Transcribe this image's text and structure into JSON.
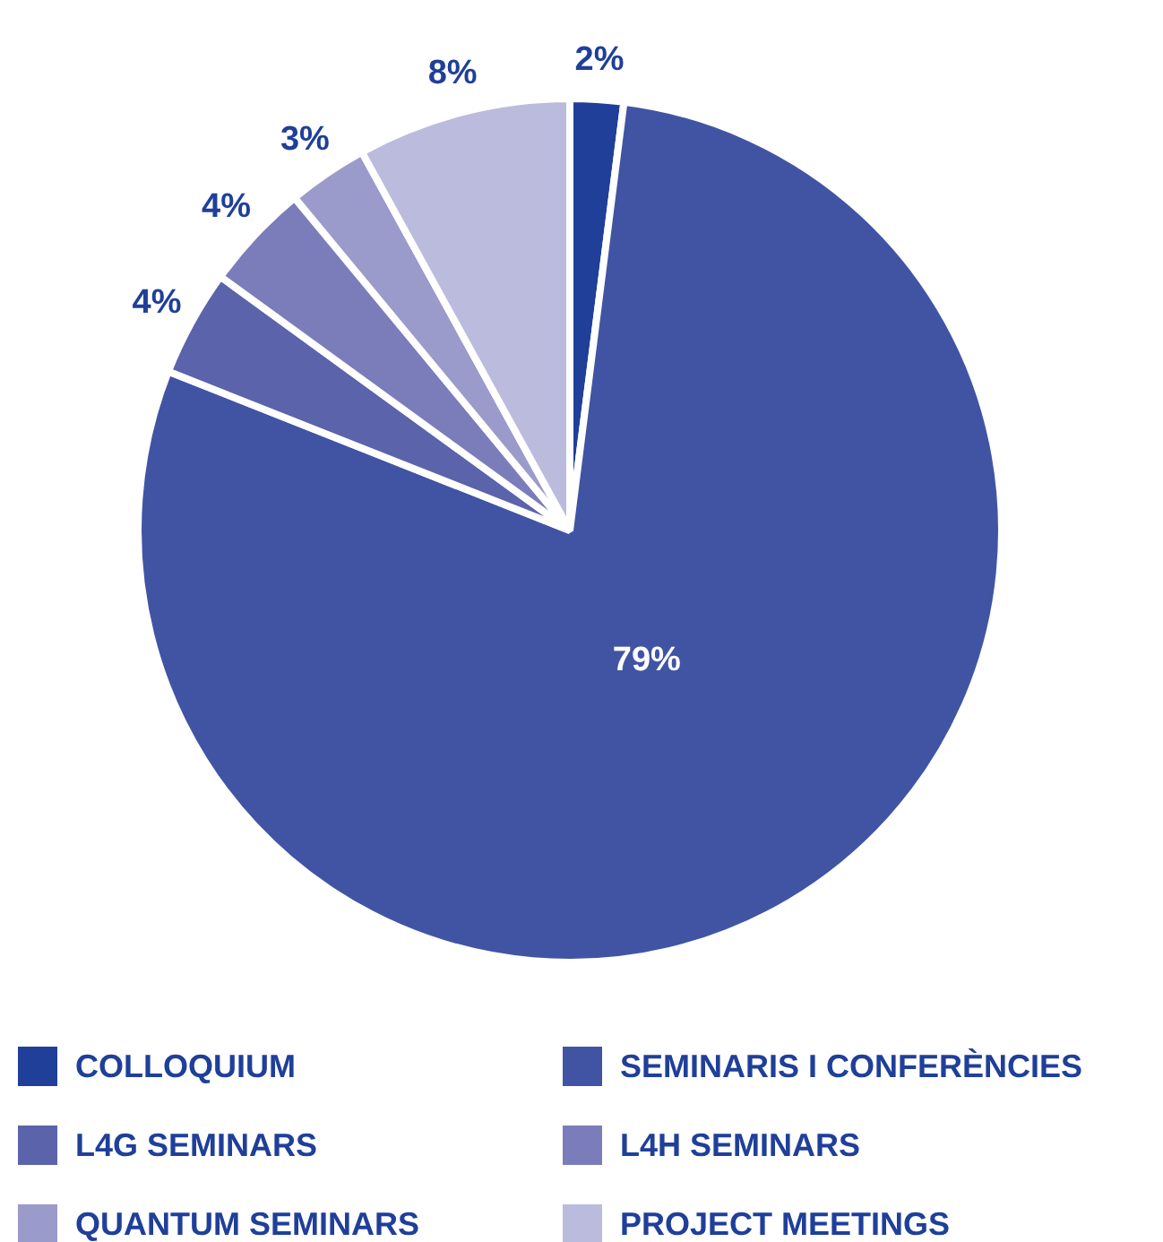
{
  "chart_data": {
    "type": "pie",
    "categories": [
      "COLLOQUIUM",
      "SEMINARIS I CONFERÈNCIES",
      "L4G SEMINARS",
      "L4H SEMINARS",
      "QUANTUM SEMINARS",
      "PROJECT MEETINGS"
    ],
    "values": [
      2,
      79,
      4,
      4,
      3,
      8
    ],
    "colors": [
      "#1f3f99",
      "#4154a4",
      "#5b63ab",
      "#7b7dbb",
      "#9a9acb",
      "#bbbbdd"
    ],
    "value_labels": [
      "2%",
      "79%",
      "4%",
      "4%",
      "3%",
      "8%"
    ],
    "legend": "bottom"
  }
}
